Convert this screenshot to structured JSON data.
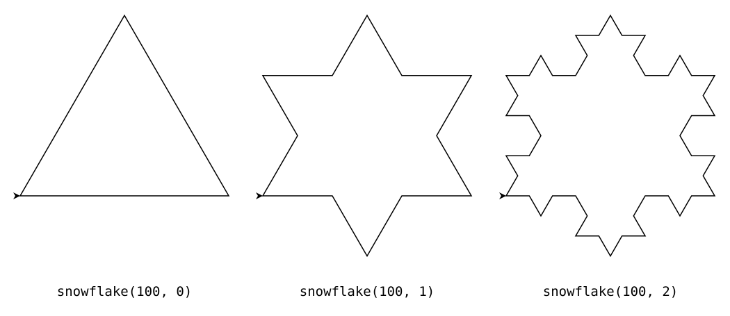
{
  "figures": [
    {
      "label": "snowflake(100, 0)",
      "length": 100,
      "depth": 0
    },
    {
      "label": "snowflake(100, 1)",
      "length": 100,
      "depth": 1
    },
    {
      "label": "snowflake(100, 2)",
      "length": 100,
      "depth": 2
    }
  ],
  "colors": {
    "background": "#ffffff",
    "stroke": "#000000",
    "text": "#000000"
  },
  "icons": {
    "turtle_cursor": "arrowhead-icon"
  }
}
